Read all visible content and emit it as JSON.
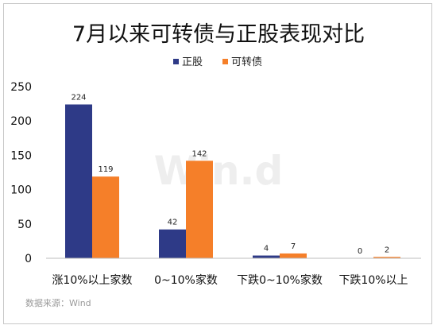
{
  "chart_data": {
    "type": "bar",
    "title": "7月以来可转债与正股表现对比",
    "categories": [
      "涨10%以上家数",
      "0~10%家数",
      "下跌0~10%家数",
      "下跌10%以上"
    ],
    "series": [
      {
        "name": "正股",
        "color": "#2e3a87",
        "values": [
          224,
          42,
          4,
          0
        ]
      },
      {
        "name": "可转债",
        "color": "#f57f29",
        "values": [
          119,
          142,
          7,
          2
        ]
      }
    ],
    "ylim": [
      0,
      250
    ],
    "yticks": [
      0,
      50,
      100,
      150,
      200,
      250
    ],
    "legend_position": "top-center",
    "grid": false
  },
  "source_text": "数据来源：Wind",
  "watermark_text": "Win.d"
}
